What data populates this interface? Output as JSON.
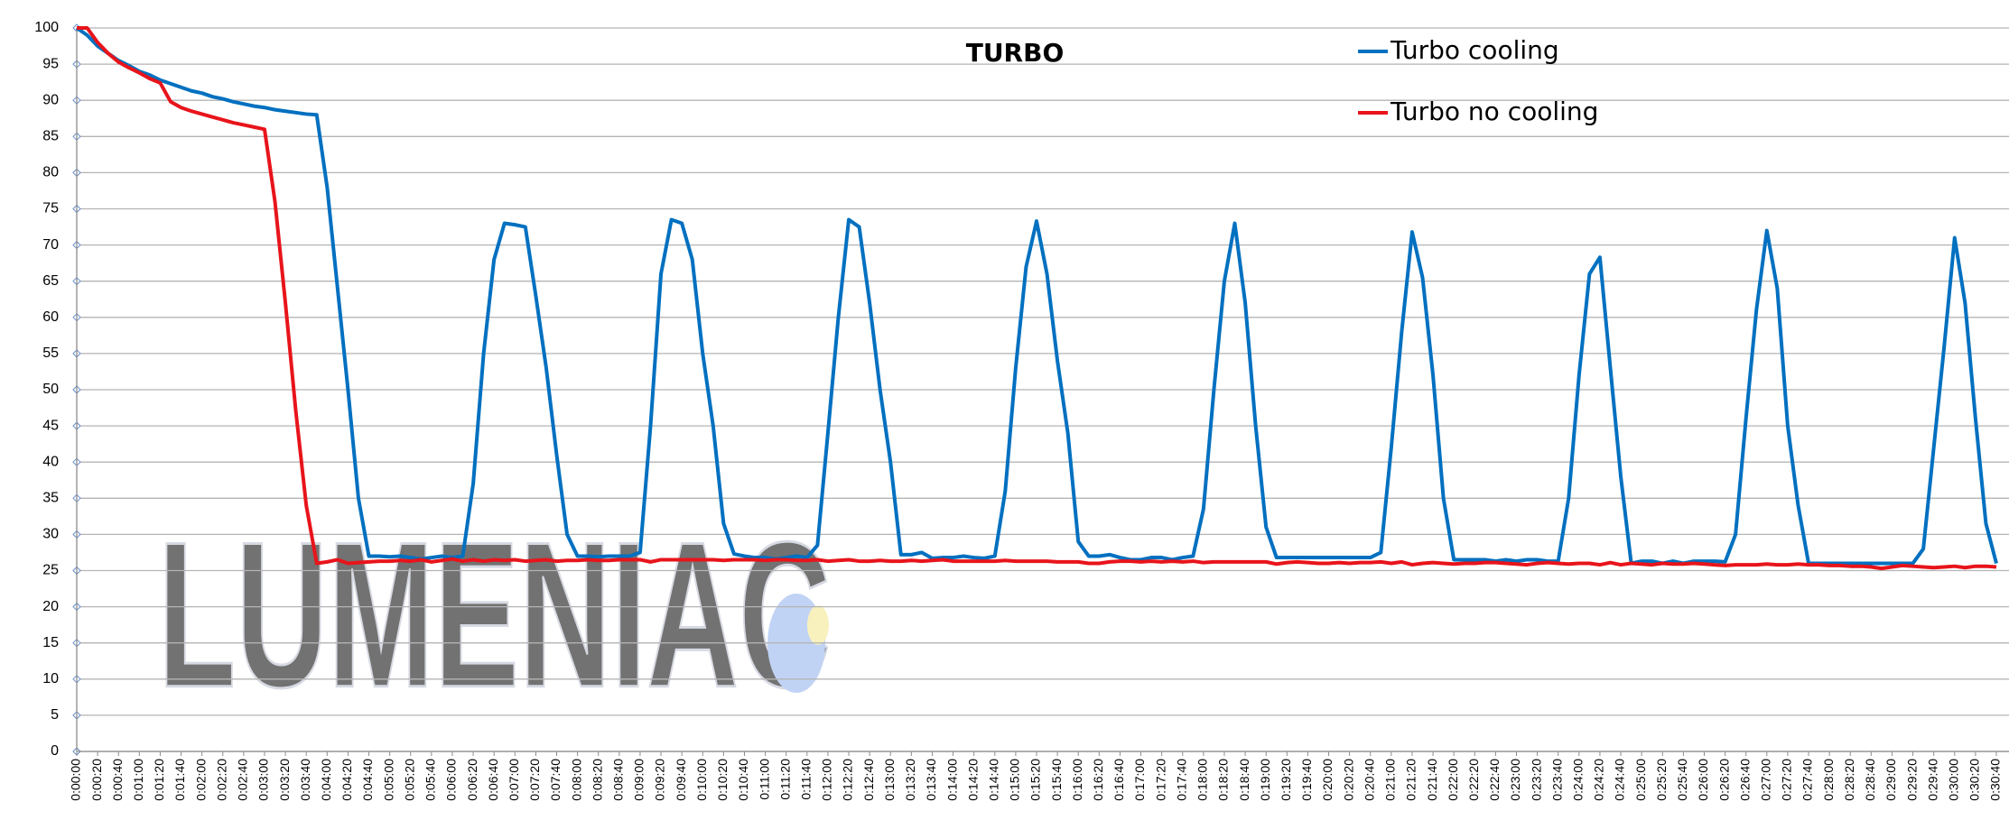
{
  "chart_data": {
    "type": "line",
    "title": "TURBO",
    "watermark": "LUMENIAC",
    "categories": [
      "0:00:00",
      null,
      "0:00:20",
      null,
      "0:00:40",
      null,
      "0:01:00",
      null,
      "0:01:20",
      null,
      "0:01:40",
      null,
      "0:02:00",
      null,
      "0:02:20",
      null,
      "0:02:40",
      null,
      "0:03:00",
      null,
      "0:03:20",
      null,
      "0:03:40",
      null,
      "0:04:00",
      null,
      "0:04:20",
      null,
      "0:04:40",
      null,
      "0:05:00",
      null,
      "0:05:20",
      null,
      "0:05:40",
      null,
      "0:06:00",
      null,
      "0:06:20",
      null,
      "0:06:40",
      null,
      "0:07:00",
      null,
      "0:07:20",
      null,
      "0:07:40",
      null,
      "0:08:00",
      null,
      "0:08:20",
      null,
      "0:08:40",
      null,
      "0:09:00",
      null,
      "0:09:20",
      null,
      "0:09:40",
      null,
      "0:10:00",
      null,
      "0:10:20",
      null,
      "0:10:40",
      null,
      "0:11:00",
      null,
      "0:11:20",
      null,
      "0:11:40",
      null,
      "0:12:00",
      null,
      "0:12:20",
      null,
      "0:12:40",
      null,
      "0:13:00",
      null,
      "0:13:20",
      null,
      "0:13:40",
      null,
      "0:14:00",
      null,
      "0:14:20",
      null,
      "0:14:40",
      null,
      "0:15:00",
      null,
      "0:15:20",
      null,
      "0:15:40",
      null,
      "0:16:00",
      null,
      "0:16:20",
      null,
      "0:16:40",
      null,
      "0:17:00",
      null,
      "0:17:20",
      null,
      "0:17:40",
      null,
      "0:18:00",
      null,
      "0:18:20",
      null,
      "0:18:40",
      null,
      "0:19:00",
      null,
      "0:19:20",
      null,
      "0:19:40",
      null,
      "0:20:00",
      null,
      "0:20:20",
      null,
      "0:20:40",
      null,
      "0:21:00",
      null,
      "0:21:20",
      null,
      "0:21:40",
      null,
      "0:22:00",
      null,
      "0:22:20",
      null,
      "0:22:40",
      null,
      "0:23:00",
      null,
      "0:23:20",
      null,
      "0:23:40",
      null,
      "0:24:00",
      null,
      "0:24:20",
      null,
      "0:24:40",
      null,
      "0:25:00",
      null,
      "0:25:20",
      null,
      "0:25:40",
      null,
      "0:26:00",
      null,
      "0:26:20",
      null,
      "0:26:40",
      null,
      "0:27:00",
      null,
      "0:27:20",
      null,
      "0:27:40",
      null,
      "0:28:00",
      null,
      "0:28:20",
      null,
      "0:28:40",
      null,
      "0:29:00",
      null,
      "0:29:20",
      null,
      "0:29:40",
      null,
      "0:30:00",
      null,
      "0:30:20",
      null,
      "0:30:40"
    ],
    "series": [
      {
        "name": "Turbo cooling",
        "color": "#0070c0",
        "values": [
          100,
          99,
          97.5,
          96.5,
          95.5,
          94.8,
          94,
          93.5,
          92.8,
          92.3,
          91.8,
          91.3,
          91,
          90.5,
          90.2,
          89.8,
          89.5,
          89.2,
          89,
          88.7,
          88.5,
          88.3,
          88.1,
          88,
          78,
          64,
          50,
          35,
          27,
          27,
          26.9,
          27,
          26.8,
          26.6,
          26.8,
          27,
          26.8,
          27,
          37,
          55,
          68,
          73,
          72.8,
          72.5,
          63,
          53,
          41,
          30,
          27,
          27,
          26.9,
          27,
          27,
          27,
          27.5,
          45,
          66,
          73.5,
          73,
          68,
          55,
          45,
          31.5,
          27.3,
          27,
          26.8,
          26.8,
          26.6,
          26.8,
          27,
          26.8,
          28.5,
          44,
          60,
          73.5,
          72.5,
          62,
          50,
          40,
          27.2,
          27.2,
          27.5,
          26.7,
          26.8,
          26.8,
          27,
          26.8,
          26.7,
          27,
          36,
          53,
          67,
          73.3,
          66,
          54,
          44,
          29,
          27,
          27,
          27.2,
          26.8,
          26.5,
          26.5,
          26.8,
          26.8,
          26.5,
          26.8,
          27,
          33.5,
          50,
          65,
          73,
          62,
          45,
          31,
          26.8,
          26.8,
          26.8,
          26.8,
          26.8,
          26.8,
          26.8,
          26.8,
          26.8,
          26.8,
          27.5,
          42,
          58,
          71.8,
          65.5,
          52,
          35,
          26.5,
          26.5,
          26.5,
          26.5,
          26.3,
          26.5,
          26.3,
          26.5,
          26.5,
          26.3,
          26.3,
          35,
          52,
          66,
          68.3,
          53,
          38,
          26,
          26.3,
          26.3,
          26,
          26.3,
          26,
          26.3,
          26.3,
          26.3,
          26.2,
          30,
          46,
          61,
          72,
          64,
          45,
          34,
          26,
          26,
          26,
          26,
          26,
          26,
          26,
          26,
          26,
          26,
          26,
          28,
          42,
          56,
          71,
          62,
          46,
          31.5,
          26
        ]
      },
      {
        "name": "Turbo no cooling",
        "color": "#e8141b",
        "values": [
          100,
          100,
          98,
          96.5,
          95.3,
          94.5,
          93.8,
          93,
          92.4,
          89.8,
          89,
          88.5,
          88.1,
          87.7,
          87.3,
          86.9,
          86.6,
          86.3,
          86,
          76,
          62,
          47,
          34,
          26,
          26.2,
          26.5,
          26,
          26.1,
          26.2,
          26.3,
          26.3,
          26.4,
          26.3,
          26.5,
          26.2,
          26.4,
          26.6,
          26.3,
          26.5,
          26.3,
          26.5,
          26.4,
          26.5,
          26.3,
          26.4,
          26.5,
          26.3,
          26.4,
          26.4,
          26.5,
          26.4,
          26.4,
          26.5,
          26.5,
          26.5,
          26.2,
          26.5,
          26.5,
          26.5,
          26.5,
          26.5,
          26.5,
          26.4,
          26.5,
          26.5,
          26.5,
          26.4,
          26.5,
          26.5,
          26.4,
          26.4,
          26.5,
          26.3,
          26.4,
          26.5,
          26.3,
          26.3,
          26.4,
          26.3,
          26.3,
          26.4,
          26.3,
          26.4,
          26.5,
          26.3,
          26.3,
          26.3,
          26.3,
          26.3,
          26.4,
          26.3,
          26.3,
          26.3,
          26.3,
          26.2,
          26.2,
          26.2,
          26,
          26,
          26.2,
          26.3,
          26.3,
          26.2,
          26.3,
          26.2,
          26.3,
          26.2,
          26.3,
          26.1,
          26.2,
          26.2,
          26.2,
          26.2,
          26.2,
          26.2,
          25.9,
          26.1,
          26.2,
          26.1,
          26,
          26,
          26.1,
          26,
          26.1,
          26.1,
          26.2,
          26,
          26.2,
          25.8,
          26,
          26.1,
          26,
          25.9,
          26,
          26,
          26.1,
          26.1,
          26,
          25.9,
          25.8,
          26,
          26.1,
          26,
          25.9,
          26,
          26,
          25.8,
          26.1,
          25.8,
          26,
          25.9,
          25.8,
          26,
          25.9,
          25.9,
          26,
          25.9,
          25.8,
          25.7,
          25.8,
          25.8,
          25.8,
          25.9,
          25.8,
          25.8,
          25.9,
          25.8,
          25.8,
          25.7,
          25.7,
          25.6,
          25.6,
          25.5,
          25.3,
          25.5,
          25.7,
          25.6,
          25.5,
          25.4,
          25.5,
          25.6,
          25.4,
          25.6,
          25.6,
          25.5
        ]
      }
    ],
    "ylim": [
      0,
      100
    ],
    "yticks": [
      0,
      5,
      10,
      15,
      20,
      25,
      30,
      35,
      40,
      45,
      50,
      55,
      60,
      65,
      70,
      75,
      80,
      85,
      90,
      95,
      100
    ],
    "grid": true
  }
}
